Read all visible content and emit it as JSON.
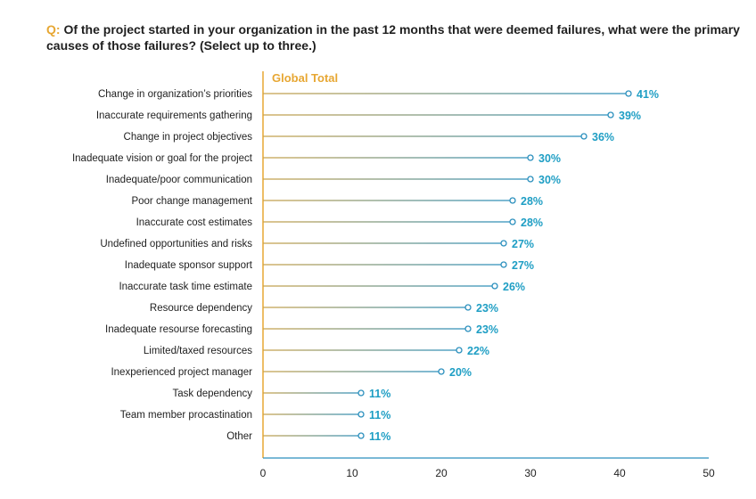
{
  "question": {
    "prefix": "Q:",
    "text": "Of the project started in your organization in the past 12 months that were deemed failures, what were the primary causes of those failures? (Select up to three.)"
  },
  "colors": {
    "accent_orange": "#e7a733",
    "value_blue": "#1e9ec4",
    "line_gold": "#c9a24a",
    "marker_blue": "#2a8fbd"
  },
  "chart_data": {
    "type": "lollipop",
    "title": "",
    "series_name": "Global Total",
    "xlim": [
      0,
      50
    ],
    "xticks": [
      0,
      10,
      20,
      30,
      40,
      50
    ],
    "categories": [
      "Change in organization’s priorities",
      "Inaccurate requirements gathering",
      "Change in project objectives",
      "Inadequate vision or goal for the project",
      "Inadequate/poor communication",
      "Poor change management",
      "Inaccurate cost estimates",
      "Undefined opportunities and risks",
      "Inadequate sponsor support",
      "Inaccurate task time estimate",
      "Resource dependency",
      "Inadequate resourse forecasting",
      "Limited/taxed resources",
      "Inexperienced project manager",
      "Task dependency",
      "Team member procastination",
      "Other"
    ],
    "values": [
      41,
      39,
      36,
      30,
      30,
      28,
      28,
      27,
      27,
      26,
      23,
      23,
      22,
      20,
      11,
      11,
      11
    ],
    "value_labels": [
      "41%",
      "39%",
      "36%",
      "30%",
      "30%",
      "28%",
      "28%",
      "27%",
      "27%",
      "26%",
      "23%",
      "23%",
      "22%",
      "20%",
      "11%",
      "11%",
      "11%"
    ]
  }
}
